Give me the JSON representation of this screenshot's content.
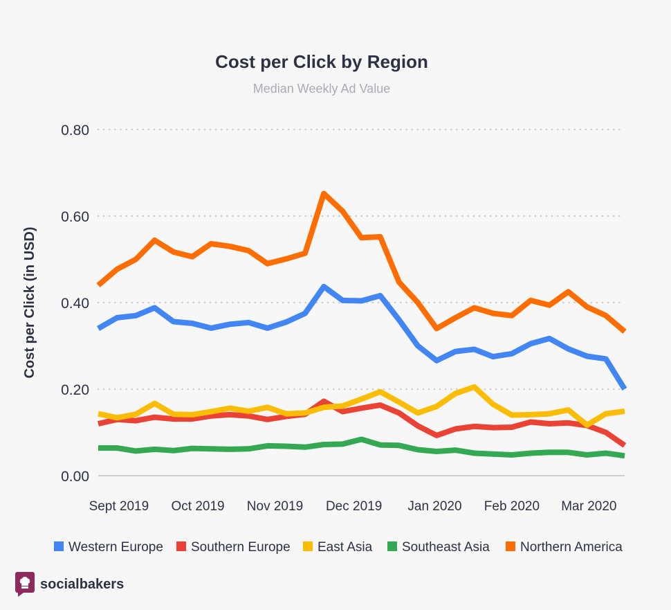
{
  "chart_data": {
    "type": "line",
    "title": "Cost per Click by Region",
    "subtitle": "Median Weekly Ad Value",
    "ylabel": "Cost per Click (in USD)",
    "ylim": [
      0,
      0.8
    ],
    "yticks": [
      "0.00",
      "0.20",
      "0.40",
      "0.60",
      "0.80"
    ],
    "ytick_values": [
      0,
      0.2,
      0.4,
      0.6,
      0.8
    ],
    "x_tick_labels": [
      {
        "label": "Sept 2019",
        "week": 1.1
      },
      {
        "label": "Oct 2019",
        "week": 5.3
      },
      {
        "label": "Nov 2019",
        "week": 9.4
      },
      {
        "label": "Dec 2019",
        "week": 13.6
      },
      {
        "label": "Jan 2020",
        "week": 17.9
      },
      {
        "label": "Feb 2020",
        "week": 22.0
      },
      {
        "label": "Mar 2020",
        "week": 26.1
      }
    ],
    "x": [
      0,
      1,
      2,
      3,
      4,
      5,
      6,
      7,
      8,
      9,
      10,
      11,
      12,
      13,
      14,
      15,
      16,
      17,
      18,
      19,
      20,
      21,
      22,
      23,
      24,
      25,
      26,
      27,
      28
    ],
    "grid": true,
    "legend_position": "bottom",
    "series": [
      {
        "name": "Western Europe",
        "color": "#4285f4",
        "values": [
          0.34,
          0.365,
          0.37,
          0.388,
          0.356,
          0.352,
          0.341,
          0.35,
          0.354,
          0.341,
          0.355,
          0.375,
          0.437,
          0.405,
          0.404,
          0.416,
          0.36,
          0.3,
          0.266,
          0.287,
          0.292,
          0.275,
          0.282,
          0.305,
          0.317,
          0.293,
          0.276,
          0.27,
          0.2
        ]
      },
      {
        "name": "Southern Europe",
        "color": "#ea4335",
        "values": [
          0.12,
          0.13,
          0.127,
          0.135,
          0.131,
          0.131,
          0.138,
          0.141,
          0.138,
          0.13,
          0.137,
          0.142,
          0.172,
          0.148,
          0.156,
          0.163,
          0.145,
          0.115,
          0.093,
          0.108,
          0.114,
          0.111,
          0.112,
          0.124,
          0.12,
          0.122,
          0.116,
          0.1,
          0.07
        ]
      },
      {
        "name": "East Asia",
        "color": "#fbbc04",
        "values": [
          0.143,
          0.134,
          0.142,
          0.167,
          0.142,
          0.141,
          0.148,
          0.156,
          0.149,
          0.158,
          0.143,
          0.145,
          0.158,
          0.161,
          0.177,
          0.194,
          0.17,
          0.145,
          0.16,
          0.19,
          0.205,
          0.165,
          0.14,
          0.141,
          0.143,
          0.152,
          0.117,
          0.143,
          0.149
        ]
      },
      {
        "name": "Southeast Asia",
        "color": "#34a853",
        "values": [
          0.064,
          0.064,
          0.057,
          0.061,
          0.058,
          0.063,
          0.062,
          0.061,
          0.062,
          0.069,
          0.068,
          0.066,
          0.072,
          0.073,
          0.084,
          0.071,
          0.07,
          0.06,
          0.056,
          0.059,
          0.052,
          0.05,
          0.048,
          0.052,
          0.054,
          0.054,
          0.048,
          0.052,
          0.046
        ]
      },
      {
        "name": "Northern America",
        "color": "#ff6d01",
        "values": [
          0.44,
          0.477,
          0.5,
          0.544,
          0.517,
          0.506,
          0.536,
          0.53,
          0.52,
          0.49,
          0.501,
          0.514,
          0.652,
          0.611,
          0.55,
          0.552,
          0.447,
          0.4,
          0.34,
          0.365,
          0.388,
          0.375,
          0.37,
          0.405,
          0.394,
          0.425,
          0.39,
          0.37,
          0.333
        ]
      }
    ]
  },
  "brand": {
    "name": "socialbakers",
    "color": "#8e2a5c"
  }
}
